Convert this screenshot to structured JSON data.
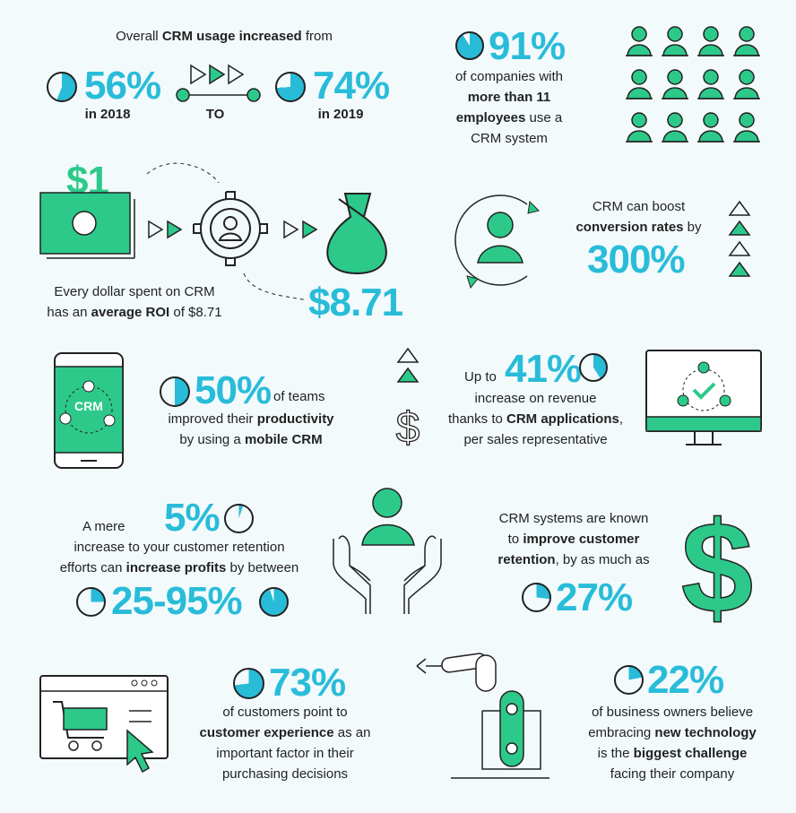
{
  "colors": {
    "cyan": "#29bcd9",
    "green": "#2dc98a",
    "background": "#f3fafc",
    "ink": "#222222"
  },
  "usage": {
    "title_pre": "Overall ",
    "title_bold": "CRM usage increased",
    "title_post": " from",
    "from_value": "56%",
    "from_label": "in 2018",
    "to_label": "TO",
    "to_value": "74%",
    "to_label_year": "in 2019",
    "from_pie_percent": 56,
    "to_pie_percent": 74
  },
  "companies": {
    "value": "91%",
    "line1": "of companies with",
    "line2": "more than 11",
    "line3_bold": "employees",
    "line3_post": " use a",
    "line4": "CRM system",
    "pie_percent": 91,
    "icon": "people-grid-icon"
  },
  "roi": {
    "input": "$1",
    "output": "$8.71",
    "line1": "Every dollar spent on CRM",
    "line2_pre": "has an ",
    "line2_bold": "average ROI",
    "line2_post": " of $8.71",
    "icons": [
      "money-bill-icon",
      "gear-user-icon",
      "money-bag-icon"
    ]
  },
  "conversion": {
    "line1": "CRM can boost",
    "line2_bold": "conversion rates",
    "line2_post": " by",
    "value": "300%",
    "icon": "user-cycle-icon"
  },
  "mobile": {
    "phone_label": "CRM",
    "value": "50%",
    "post": " of teams",
    "line2_pre": "improved their ",
    "line2_bold": "productivity",
    "line3_pre": "by using a ",
    "line3_bold": "mobile CRM",
    "pie_percent": 50
  },
  "revenue": {
    "pre": "Up to",
    "value": "41%",
    "line1": "increase on revenue",
    "line2_pre": "thanks to ",
    "line2_bold": "CRM applications",
    "line2_post": ",",
    "line3": "per sales representative",
    "pie_percent": 41,
    "icon": "monitor-check-icon"
  },
  "retention_profit": {
    "pre": "A mere",
    "value": "5%",
    "line1": "increase to your customer retention",
    "line2_pre": "efforts can ",
    "line2_bold": "increase profits",
    "line2_post": " by between",
    "range": "25-95%",
    "pie_small": 5,
    "pie_low": 25,
    "pie_high": 95,
    "icon": "hands-user-icon"
  },
  "retention": {
    "line1": "CRM systems are known",
    "line2_pre": "to ",
    "line2_bold": "improve customer",
    "line3_bold": "retention",
    "line3_post": ", by as much as",
    "value": "27%",
    "pie_percent": 27,
    "icon": "dollar-icon"
  },
  "experience": {
    "value": "73%",
    "line1": "of customers point to",
    "line2_bold": "customer experience",
    "line2_post": " as an",
    "line3": "important factor in their",
    "line4": "purchasing decisions",
    "pie_percent": 73,
    "icon": "shopping-cart-browser-icon"
  },
  "technology": {
    "value": "22%",
    "line1": "of business owners believe",
    "line2_pre": "embracing ",
    "line2_bold": "new technology",
    "line3_pre": "is the ",
    "line3_bold": "biggest challenge",
    "line4": "facing their company",
    "pie_percent": 22,
    "icon": "robot-arm-icon"
  }
}
